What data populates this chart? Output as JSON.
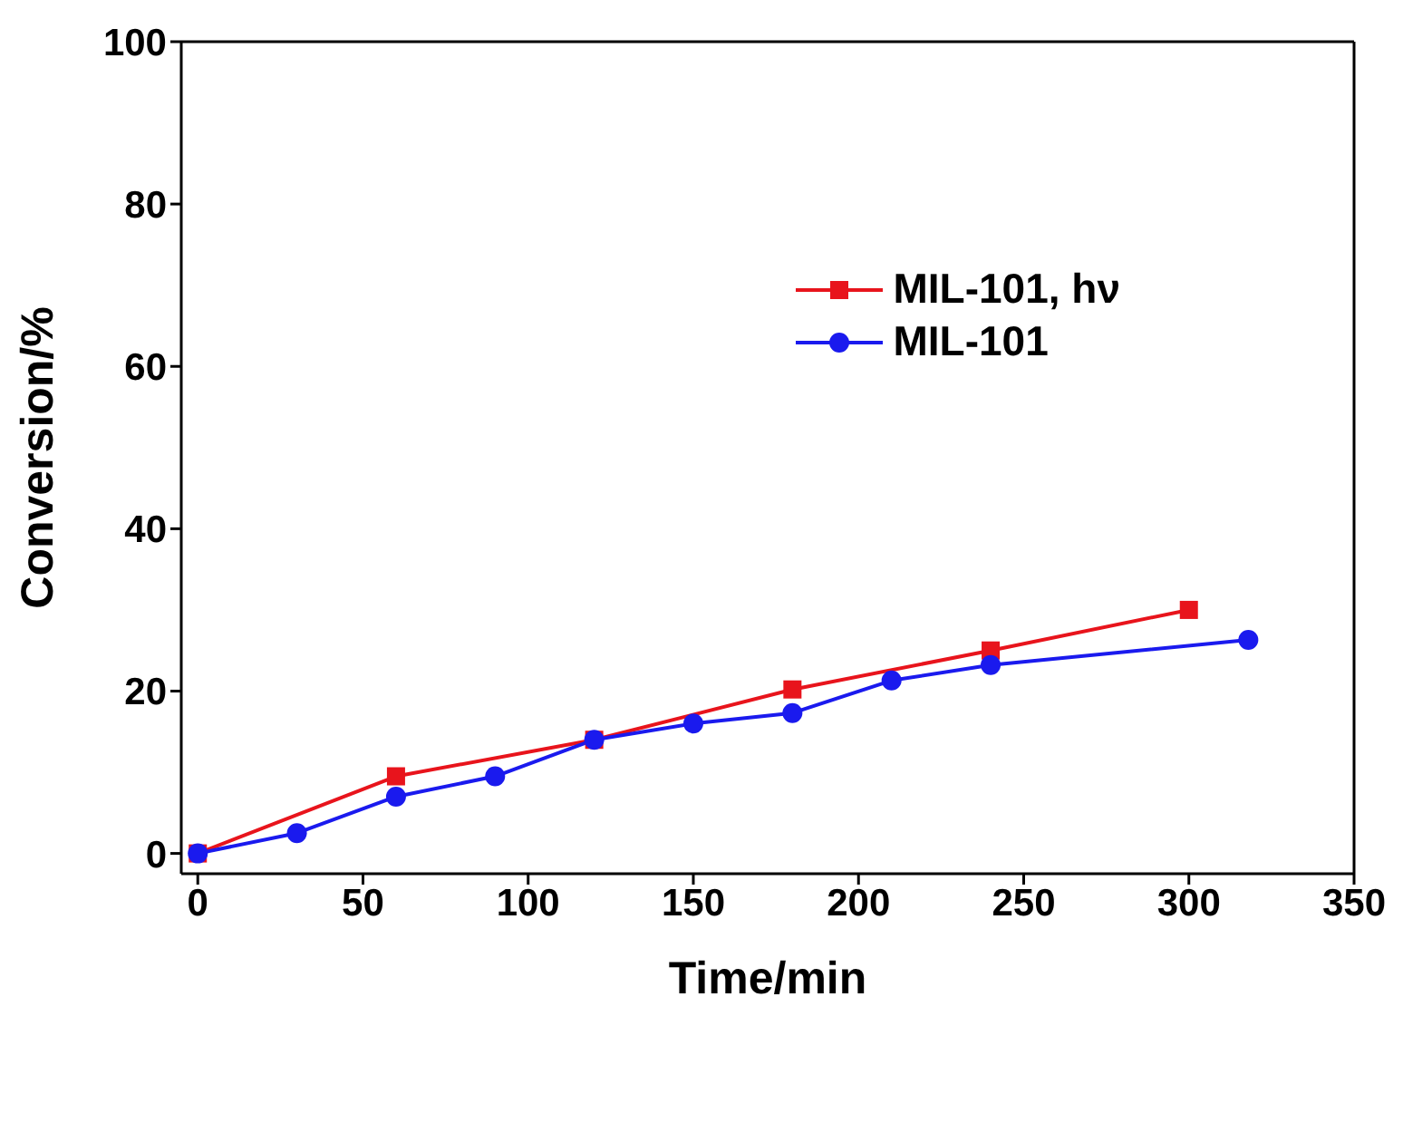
{
  "chart_data": {
    "type": "line",
    "xlabel": "Time/min",
    "ylabel": "Conversion/%",
    "xlim": [
      -5,
      350
    ],
    "ylim": [
      -2.5,
      100
    ],
    "xticks": [
      0,
      50,
      100,
      150,
      200,
      250,
      300,
      350
    ],
    "yticks": [
      0,
      20,
      40,
      60,
      80,
      100
    ],
    "legend": "top right",
    "line_style": "solid",
    "series": [
      {
        "name": "MIL-101, hν",
        "color": "#e8141c",
        "marker": "square",
        "x": [
          0,
          60,
          120,
          180,
          240,
          300
        ],
        "values": [
          0,
          9.5,
          14,
          20.2,
          25,
          30
        ]
      },
      {
        "name": "MIL-101",
        "color": "#1a1aee",
        "marker": "circle",
        "x": [
          0,
          30,
          60,
          90,
          120,
          150,
          180,
          210,
          240,
          318
        ],
        "values": [
          0,
          2.5,
          7,
          9.5,
          14,
          16,
          17.3,
          21.3,
          23.2,
          26.3
        ]
      }
    ]
  }
}
